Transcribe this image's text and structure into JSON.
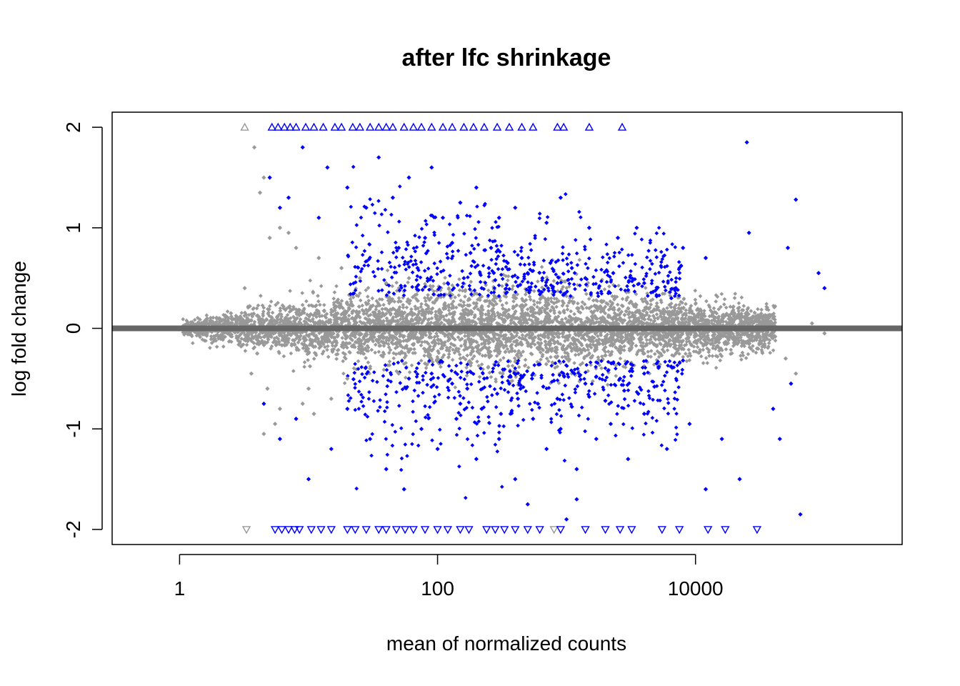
{
  "chart_data": {
    "type": "scatter",
    "title": "after lfc shrinkage",
    "xlabel": "mean of normalized counts",
    "ylabel": "log fold change",
    "x_scale": "log10",
    "xlim": [
      0.3,
      400000
    ],
    "ylim": [
      -2.15,
      2.15
    ],
    "x_ticks": [
      {
        "value": 1,
        "label": "1"
      },
      {
        "value": 100,
        "label": "100"
      },
      {
        "value": 10000,
        "label": "10000"
      }
    ],
    "y_ticks": [
      {
        "value": -2,
        "label": "-2"
      },
      {
        "value": -1,
        "label": "-1"
      },
      {
        "value": 0,
        "label": "0"
      },
      {
        "value": 1,
        "label": "1"
      },
      {
        "value": 2,
        "label": "2"
      }
    ],
    "reference_line": {
      "y": 0
    },
    "legend": "none",
    "grid": false,
    "colors": {
      "significant": "#0000ff",
      "not_significant": "#999999",
      "reference_line": "#666666"
    },
    "series": [
      {
        "color": "#999999",
        "points": [
          [
            1.2,
            0.03
          ],
          [
            1.4,
            -0.05
          ],
          [
            1.6,
            0.08
          ],
          [
            2.0,
            -0.1
          ],
          [
            2.5,
            0.15
          ],
          [
            3.0,
            -0.18
          ],
          [
            3.5,
            0.22
          ],
          [
            4.0,
            -0.25
          ],
          [
            3.2,
            0.4
          ],
          [
            3.6,
            -0.45
          ],
          [
            4.5,
            1.5
          ],
          [
            4.2,
            1.35
          ],
          [
            3.8,
            1.8
          ],
          [
            4.8,
            -0.6
          ],
          [
            5.0,
            0.9
          ],
          [
            6.0,
            -0.8
          ],
          [
            8.0,
            0.8
          ],
          [
            10,
            -0.6
          ],
          [
            12,
            0.7
          ],
          [
            15,
            -0.7
          ],
          [
            18,
            0.6
          ],
          [
            20,
            -0.5
          ],
          [
            25,
            0.5
          ],
          [
            30,
            -0.4
          ],
          [
            40,
            0.45
          ],
          [
            50,
            -0.45
          ],
          [
            60,
            0.5
          ],
          [
            80,
            -0.35
          ],
          [
            100,
            0.3
          ],
          [
            150,
            -0.3
          ],
          [
            200,
            0.25
          ],
          [
            300,
            -0.25
          ],
          [
            400,
            0.3
          ],
          [
            600,
            -0.2
          ],
          [
            800,
            0.25
          ],
          [
            1000,
            -0.2
          ],
          [
            1500,
            0.2
          ],
          [
            2000,
            -0.15
          ],
          [
            3000,
            0.2
          ],
          [
            4000,
            -0.25
          ],
          [
            5000,
            0.22
          ],
          [
            7000,
            -0.2
          ],
          [
            9000,
            0.18
          ],
          [
            12000,
            -0.15
          ],
          [
            15000,
            0.1
          ],
          [
            20000,
            -0.12
          ],
          [
            25000,
            0.08
          ],
          [
            30000,
            -0.2
          ],
          [
            40000,
            0.1
          ],
          [
            50000,
            -0.3
          ],
          [
            60000,
            -0.45
          ],
          [
            80000,
            0.05
          ],
          [
            100000,
            -0.05
          ],
          [
            4.5,
            -1.05
          ],
          [
            5.5,
            -0.95
          ],
          [
            7,
            0.95
          ],
          [
            11,
            -0.85
          ],
          [
            6,
            1.0
          ],
          [
            9,
            -0.75
          ]
        ]
      },
      {
        "color": "#0000ff",
        "points": [
          [
            5,
            1.5
          ],
          [
            6,
            1.2
          ],
          [
            7,
            1.3
          ],
          [
            9,
            1.8
          ],
          [
            12,
            1.1
          ],
          [
            14,
            1.6
          ],
          [
            20,
            1.4
          ],
          [
            28,
            1.2
          ],
          [
            35,
            1.7
          ],
          [
            45,
            1.3
          ],
          [
            60,
            1.5
          ],
          [
            90,
            1.6
          ],
          [
            110,
            1.1
          ],
          [
            150,
            1.25
          ],
          [
            200,
            1.4
          ],
          [
            300,
            1.1
          ],
          [
            400,
            1.2
          ],
          [
            700,
            1.05
          ],
          [
            900,
            1.3
          ],
          [
            1500,
            1.0
          ],
          [
            2500,
            0.9
          ],
          [
            3500,
            1.0
          ],
          [
            8000,
            0.8
          ],
          [
            12000,
            0.7
          ],
          [
            25000,
            1.85
          ],
          [
            26000,
            0.95
          ],
          [
            60000,
            1.28
          ],
          [
            90000,
            0.55
          ],
          [
            52000,
            0.8
          ],
          [
            100000,
            0.4
          ],
          [
            50,
            0.8
          ],
          [
            70,
            0.6
          ],
          [
            120,
            0.7
          ],
          [
            180,
            0.75
          ],
          [
            250,
            0.6
          ],
          [
            350,
            0.65
          ],
          [
            500,
            0.55
          ],
          [
            650,
            0.5
          ],
          [
            850,
            0.45
          ],
          [
            1100,
            0.6
          ],
          [
            1400,
            0.5
          ],
          [
            1800,
            0.42
          ],
          [
            2300,
            0.55
          ],
          [
            3000,
            0.38
          ],
          [
            4000,
            0.45
          ],
          [
            5000,
            0.32
          ],
          [
            6500,
            0.3
          ],
          [
            120,
            0.45
          ],
          [
            160,
            0.5
          ],
          [
            220,
            0.4
          ],
          [
            280,
            0.48
          ],
          [
            340,
            0.35
          ],
          [
            420,
            0.42
          ],
          [
            520,
            0.38
          ],
          [
            640,
            0.36
          ],
          [
            780,
            0.4
          ],
          [
            960,
            0.34
          ],
          [
            80,
            0.9
          ],
          [
            130,
            0.85
          ],
          [
            260,
            0.8
          ],
          [
            450,
            0.7
          ],
          [
            750,
            0.65
          ],
          [
            8,
            -0.9
          ],
          [
            10,
            -1.5
          ],
          [
            15,
            -1.2
          ],
          [
            20,
            -0.8
          ],
          [
            30,
            -1.1
          ],
          [
            40,
            -1.4
          ],
          [
            55,
            -1.6
          ],
          [
            75,
            -1.0
          ],
          [
            100,
            -1.2
          ],
          [
            140,
            -0.9
          ],
          [
            200,
            -1.3
          ],
          [
            300,
            -1.1
          ],
          [
            400,
            -1.5
          ],
          [
            550,
            -0.9
          ],
          [
            700,
            -1.2
          ],
          [
            900,
            -1.0
          ],
          [
            1200,
            -1.4
          ],
          [
            1700,
            -1.1
          ],
          [
            2200,
            -0.95
          ],
          [
            3000,
            -1.3
          ],
          [
            4000,
            -0.85
          ],
          [
            6000,
            -1.2
          ],
          [
            9000,
            -0.95
          ],
          [
            12000,
            -1.6
          ],
          [
            16000,
            -1.1
          ],
          [
            22000,
            -1.5
          ],
          [
            40000,
            -0.8
          ],
          [
            45000,
            -1.1
          ],
          [
            55000,
            -0.55
          ],
          [
            65000,
            -1.85
          ],
          [
            60,
            -0.5
          ],
          [
            90,
            -0.45
          ],
          [
            130,
            -0.55
          ],
          [
            170,
            -0.6
          ],
          [
            230,
            -0.5
          ],
          [
            290,
            -0.65
          ],
          [
            360,
            -0.55
          ],
          [
            440,
            -0.6
          ],
          [
            540,
            -0.5
          ],
          [
            660,
            -0.58
          ],
          [
            800,
            -0.52
          ],
          [
            960,
            -0.48
          ],
          [
            1150,
            -0.45
          ],
          [
            1400,
            -0.55
          ],
          [
            1700,
            -0.48
          ],
          [
            2100,
            -0.42
          ],
          [
            2600,
            -0.5
          ],
          [
            3200,
            -0.4
          ],
          [
            4000,
            -0.45
          ],
          [
            5000,
            -0.35
          ],
          [
            6500,
            -0.38
          ],
          [
            8000,
            -0.32
          ],
          [
            150,
            -0.75
          ],
          [
            220,
            -0.8
          ],
          [
            310,
            -0.85
          ],
          [
            420,
            -0.7
          ],
          [
            600,
            -0.75
          ],
          [
            850,
            -0.7
          ],
          [
            1100,
            -0.78
          ],
          [
            1500,
            -0.68
          ],
          [
            2000,
            -0.72
          ],
          [
            2800,
            -0.62
          ],
          [
            3600,
            -0.65
          ],
          [
            4800,
            -0.58
          ],
          [
            1000,
            -1.9
          ],
          [
            1200,
            -1.7
          ],
          [
            500,
            -1.75
          ],
          [
            6,
            -1.1
          ],
          [
            4.5,
            -0.75
          ]
        ]
      }
    ],
    "clipped_markers": {
      "up": {
        "y": 2,
        "symbol": "triangle-up"
      },
      "down": {
        "y": -2,
        "symbol": "triangle-down"
      },
      "points": [
        {
          "x": 3.2,
          "dir": "up",
          "color": "#999999"
        },
        {
          "x": 3.3,
          "dir": "down",
          "color": "#999999"
        },
        {
          "x": 5.2,
          "dir": "up",
          "color": "#0000ff"
        },
        {
          "x": 5.8,
          "dir": "up",
          "color": "#0000ff"
        },
        {
          "x": 6.5,
          "dir": "up",
          "color": "#0000ff"
        },
        {
          "x": 7.2,
          "dir": "up",
          "color": "#0000ff"
        },
        {
          "x": 8.0,
          "dir": "up",
          "color": "#0000ff"
        },
        {
          "x": 9.5,
          "dir": "up",
          "color": "#0000ff"
        },
        {
          "x": 11.0,
          "dir": "up",
          "color": "#0000ff"
        },
        {
          "x": 13.0,
          "dir": "up",
          "color": "#0000ff"
        },
        {
          "x": 16.0,
          "dir": "up",
          "color": "#0000ff"
        },
        {
          "x": 18.0,
          "dir": "up",
          "color": "#0000ff"
        },
        {
          "x": 22.0,
          "dir": "up",
          "color": "#0000ff"
        },
        {
          "x": 25.0,
          "dir": "up",
          "color": "#0000ff"
        },
        {
          "x": 30.0,
          "dir": "up",
          "color": "#0000ff"
        },
        {
          "x": 35.0,
          "dir": "up",
          "color": "#0000ff"
        },
        {
          "x": 40.0,
          "dir": "up",
          "color": "#0000ff"
        },
        {
          "x": 45.0,
          "dir": "up",
          "color": "#0000ff"
        },
        {
          "x": 55.0,
          "dir": "up",
          "color": "#0000ff"
        },
        {
          "x": 65.0,
          "dir": "up",
          "color": "#0000ff"
        },
        {
          "x": 75.0,
          "dir": "up",
          "color": "#0000ff"
        },
        {
          "x": 90.0,
          "dir": "up",
          "color": "#0000ff"
        },
        {
          "x": 110.0,
          "dir": "up",
          "color": "#0000ff"
        },
        {
          "x": 130.0,
          "dir": "up",
          "color": "#0000ff"
        },
        {
          "x": 160.0,
          "dir": "up",
          "color": "#0000ff"
        },
        {
          "x": 190.0,
          "dir": "up",
          "color": "#0000ff"
        },
        {
          "x": 230.0,
          "dir": "up",
          "color": "#0000ff"
        },
        {
          "x": 290.0,
          "dir": "up",
          "color": "#0000ff"
        },
        {
          "x": 360.0,
          "dir": "up",
          "color": "#0000ff"
        },
        {
          "x": 450.0,
          "dir": "up",
          "color": "#0000ff"
        },
        {
          "x": 550.0,
          "dir": "up",
          "color": "#0000ff"
        },
        {
          "x": 850.0,
          "dir": "up",
          "color": "#0000ff"
        },
        {
          "x": 950.0,
          "dir": "up",
          "color": "#0000ff"
        },
        {
          "x": 1500.0,
          "dir": "up",
          "color": "#0000ff"
        },
        {
          "x": 2700.0,
          "dir": "up",
          "color": "#0000ff"
        },
        {
          "x": 5.5,
          "dir": "down",
          "color": "#0000ff"
        },
        {
          "x": 6.2,
          "dir": "down",
          "color": "#0000ff"
        },
        {
          "x": 7.0,
          "dir": "down",
          "color": "#0000ff"
        },
        {
          "x": 7.8,
          "dir": "down",
          "color": "#0000ff"
        },
        {
          "x": 8.5,
          "dir": "down",
          "color": "#0000ff"
        },
        {
          "x": 10.5,
          "dir": "down",
          "color": "#0000ff"
        },
        {
          "x": 12.5,
          "dir": "down",
          "color": "#0000ff"
        },
        {
          "x": 15.0,
          "dir": "down",
          "color": "#0000ff"
        },
        {
          "x": 20.0,
          "dir": "down",
          "color": "#0000ff"
        },
        {
          "x": 23.0,
          "dir": "down",
          "color": "#0000ff"
        },
        {
          "x": 28.0,
          "dir": "down",
          "color": "#0000ff"
        },
        {
          "x": 35.0,
          "dir": "down",
          "color": "#0000ff"
        },
        {
          "x": 40.0,
          "dir": "down",
          "color": "#0000ff"
        },
        {
          "x": 48.0,
          "dir": "down",
          "color": "#0000ff"
        },
        {
          "x": 56.0,
          "dir": "down",
          "color": "#0000ff"
        },
        {
          "x": 65.0,
          "dir": "down",
          "color": "#0000ff"
        },
        {
          "x": 80.0,
          "dir": "down",
          "color": "#0000ff"
        },
        {
          "x": 100.0,
          "dir": "down",
          "color": "#0000ff"
        },
        {
          "x": 120.0,
          "dir": "down",
          "color": "#0000ff"
        },
        {
          "x": 150.0,
          "dir": "down",
          "color": "#0000ff"
        },
        {
          "x": 175.0,
          "dir": "down",
          "color": "#0000ff"
        },
        {
          "x": 240.0,
          "dir": "down",
          "color": "#0000ff"
        },
        {
          "x": 280.0,
          "dir": "down",
          "color": "#0000ff"
        },
        {
          "x": 330.0,
          "dir": "down",
          "color": "#0000ff"
        },
        {
          "x": 400.0,
          "dir": "down",
          "color": "#0000ff"
        },
        {
          "x": 500.0,
          "dir": "down",
          "color": "#0000ff"
        },
        {
          "x": 620.0,
          "dir": "down",
          "color": "#0000ff"
        },
        {
          "x": 800.0,
          "dir": "down",
          "color": "#999999"
        },
        {
          "x": 900.0,
          "dir": "down",
          "color": "#0000ff"
        },
        {
          "x": 1400.0,
          "dir": "down",
          "color": "#0000ff"
        },
        {
          "x": 2000.0,
          "dir": "down",
          "color": "#0000ff"
        },
        {
          "x": 2600.0,
          "dir": "down",
          "color": "#0000ff"
        },
        {
          "x": 3200.0,
          "dir": "down",
          "color": "#0000ff"
        },
        {
          "x": 5500.0,
          "dir": "down",
          "color": "#0000ff"
        },
        {
          "x": 7500.0,
          "dir": "down",
          "color": "#0000ff"
        },
        {
          "x": 12500.0,
          "dir": "down",
          "color": "#0000ff"
        },
        {
          "x": 17000.0,
          "dir": "down",
          "color": "#0000ff"
        },
        {
          "x": 30000.0,
          "dir": "down",
          "color": "#0000ff"
        }
      ]
    }
  }
}
